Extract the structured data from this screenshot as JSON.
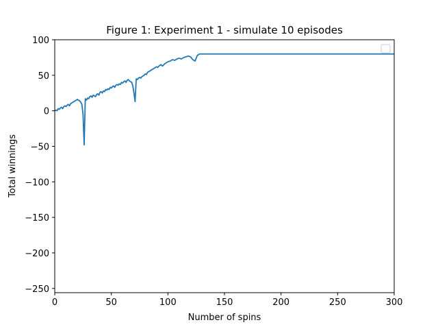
{
  "chart_data": {
    "type": "line",
    "title": "Figure 1: Experiment 1 - simulate 10 episodes",
    "xlabel": "Number of spins",
    "ylabel": "Total winnings",
    "xlim": [
      0,
      300
    ],
    "ylim": [
      -256,
      100
    ],
    "xticks": [
      0,
      50,
      100,
      150,
      200,
      250,
      300
    ],
    "yticks": [
      -250,
      -200,
      -150,
      -100,
      -50,
      0,
      50,
      100
    ],
    "xtick_labels": [
      "0",
      "50",
      "100",
      "150",
      "200",
      "250",
      "300"
    ],
    "ytick_labels": [
      "−250",
      "−200",
      "−150",
      "−100",
      "−50",
      "0",
      "50",
      "100"
    ],
    "grid": false,
    "legend": {
      "placement": "top-right",
      "entries": []
    },
    "colors": {
      "series": "#1f77b4"
    },
    "series": [
      {
        "x": [
          0,
          1,
          2,
          3,
          4,
          5,
          6,
          7,
          8,
          9,
          10,
          11,
          12,
          13,
          14,
          15,
          16,
          17,
          18,
          19,
          20,
          21,
          22,
          23,
          24,
          25,
          26,
          27,
          28,
          29,
          30,
          31,
          32,
          33,
          34,
          35,
          36,
          37,
          38,
          39,
          40,
          41,
          42,
          43,
          44,
          45,
          46,
          47,
          48,
          49,
          50,
          51,
          52,
          53,
          54,
          55,
          56,
          57,
          58,
          59,
          60,
          61,
          62,
          63,
          64,
          65,
          66,
          67,
          68,
          69,
          70,
          71,
          72,
          73,
          74,
          75,
          76,
          77,
          78,
          79,
          80,
          81,
          82,
          83,
          84,
          85,
          86,
          87,
          88,
          89,
          90,
          91,
          92,
          93,
          94,
          95,
          96,
          97,
          98,
          99,
          100,
          102,
          104,
          106,
          108,
          110,
          112,
          114,
          116,
          118,
          120,
          122,
          124,
          126,
          128,
          130,
          132,
          134,
          135,
          136,
          137,
          138,
          139,
          140,
          141,
          142,
          143,
          145,
          150,
          200,
          250,
          300
        ],
        "y": [
          0,
          1,
          0,
          3,
          2,
          4,
          5,
          3,
          6,
          7,
          6,
          8,
          9,
          7,
          10,
          11,
          12,
          13,
          14,
          15,
          16,
          15,
          14,
          12,
          9,
          -5,
          -48,
          17,
          15,
          18,
          17,
          20,
          21,
          19,
          22,
          21,
          20,
          23,
          24,
          22,
          26,
          27,
          25,
          28,
          27,
          30,
          29,
          31,
          30,
          33,
          32,
          34,
          35,
          33,
          36,
          37,
          36,
          38,
          37,
          40,
          39,
          41,
          42,
          40,
          43,
          44,
          42,
          41,
          40,
          35,
          25,
          13,
          45,
          44,
          46,
          47,
          46,
          48,
          49,
          50,
          52,
          51,
          54,
          55,
          56,
          57,
          58,
          59,
          60,
          61,
          62,
          61,
          63,
          64,
          65,
          63,
          64,
          66,
          67,
          68,
          69,
          70,
          72,
          71,
          73,
          74,
          73,
          75,
          76,
          77,
          76,
          72,
          70,
          78,
          80,
          80,
          80,
          80,
          80,
          80,
          80,
          80,
          80,
          80,
          80,
          80,
          80,
          80,
          80,
          80,
          80,
          80
        ]
      }
    ]
  }
}
